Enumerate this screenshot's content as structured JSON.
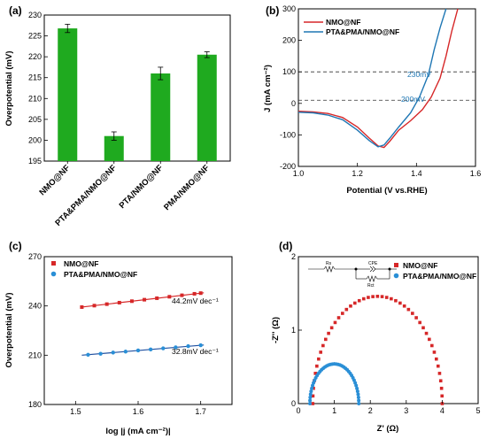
{
  "chart_data": [
    {
      "panel": "(a)",
      "type": "bar",
      "categories": [
        "NMO@NF",
        "PTA&PMA/NMO@NF",
        "PTA/NMO@NF",
        "PMA/NMO@NF"
      ],
      "values": [
        226.8,
        201.0,
        216.0,
        220.5
      ],
      "errors": [
        1.0,
        1.0,
        1.5,
        0.7
      ],
      "color": "#1faa1f",
      "ylabel": "Overpotential (mV)",
      "ylim": [
        195,
        230
      ],
      "yticks": [
        "195",
        "200",
        "205",
        "210",
        "215",
        "220",
        "225",
        "230"
      ]
    },
    {
      "panel": "(b)",
      "type": "line",
      "xlabel": "Potential (V vs.RHE)",
      "ylabel": "J (mA cm⁻²)",
      "xlim": [
        1.0,
        1.6
      ],
      "ylim": [
        -200,
        300
      ],
      "xticks": [
        "1.0",
        "1.2",
        "1.4",
        "1.6"
      ],
      "yticks": [
        "-200",
        "-100",
        "0",
        "100",
        "200",
        "300"
      ],
      "legend": "top-left",
      "series": [
        {
          "name": "NMO@NF",
          "color": "#d62728",
          "x": [
            1.0,
            1.05,
            1.1,
            1.15,
            1.2,
            1.24,
            1.27,
            1.29,
            1.31,
            1.34,
            1.38,
            1.42,
            1.45,
            1.48,
            1.5,
            1.52,
            1.54
          ],
          "y": [
            -25,
            -27,
            -32,
            -45,
            -75,
            -110,
            -135,
            -140,
            -120,
            -85,
            -55,
            -20,
            20,
            80,
            150,
            230,
            300
          ]
        },
        {
          "name": "PTA&PMA/NMO@NF",
          "color": "#1f77b4",
          "x": [
            1.0,
            1.05,
            1.1,
            1.15,
            1.2,
            1.24,
            1.27,
            1.29,
            1.31,
            1.34,
            1.38,
            1.41,
            1.44,
            1.46,
            1.48,
            1.5
          ],
          "y": [
            -28,
            -30,
            -37,
            -52,
            -85,
            -118,
            -138,
            -132,
            -110,
            -75,
            -30,
            20,
            90,
            170,
            240,
            300
          ]
        }
      ],
      "hlines": [
        100,
        10
      ],
      "annotations": [
        "230mV",
        "200mV"
      ]
    },
    {
      "panel": "(c)",
      "type": "scatter",
      "xlabel": "log |j (mA cm⁻²)|",
      "ylabel": "Overpotential (mV)",
      "xlim": [
        1.45,
        1.75
      ],
      "ylim": [
        180,
        270
      ],
      "xticks": [
        "1.5",
        "1.6",
        "1.7"
      ],
      "yticks": [
        "180",
        "210",
        "240",
        "270"
      ],
      "legend": "top-left",
      "series": [
        {
          "name": "NMO@NF",
          "color": "#d62728",
          "marker": "square",
          "x": [
            1.51,
            1.53,
            1.55,
            1.57,
            1.59,
            1.61,
            1.63,
            1.65,
            1.67,
            1.69,
            1.7
          ],
          "y": [
            239.3,
            240.2,
            241.1,
            242.0,
            242.9,
            243.8,
            244.7,
            245.6,
            246.5,
            247.4,
            247.8
          ],
          "fit": [
            [
              1.51,
              239.3
            ],
            [
              1.705,
              248.0
            ]
          ],
          "fit_color": "#d62728",
          "slope_label": "44.2mV dec⁻¹"
        },
        {
          "name": "PTA&PMA/NMO@NF",
          "color": "#2a8fd6",
          "marker": "circle",
          "x": [
            1.52,
            1.54,
            1.56,
            1.58,
            1.6,
            1.62,
            1.64,
            1.66,
            1.68,
            1.7
          ],
          "y": [
            210.3,
            210.9,
            211.6,
            212.2,
            212.9,
            213.5,
            214.2,
            214.8,
            215.5,
            216.1
          ],
          "fit": [
            [
              1.51,
              210.0
            ],
            [
              1.705,
              216.2
            ]
          ],
          "fit_color": "#1f4fa0",
          "slope_label": "32.8mV dec⁻¹"
        }
      ]
    },
    {
      "panel": "(d)",
      "type": "scatter",
      "xlabel": "Z' (Ω)",
      "ylabel": "-Z'' (Ω)",
      "xlim": [
        0,
        5
      ],
      "ylim": [
        0,
        2
      ],
      "xticks": [
        "0",
        "1",
        "2",
        "3",
        "4",
        "5"
      ],
      "yticks": [
        "0",
        "1",
        "2"
      ],
      "legend": "top-right",
      "series": [
        {
          "name": "NMO@NF",
          "color": "#d62728",
          "marker": "square",
          "arc_start": 0.4,
          "arc_end": 4.0,
          "peak": 1.46
        },
        {
          "name": "PTA&PMA/NMO@NF",
          "color": "#2a8fd6",
          "marker": "circle",
          "arc_start": 0.32,
          "arc_end": 1.68,
          "peak": 0.54
        }
      ],
      "circuit_labels": {
        "rs": "Rs",
        "cpe": "CPE",
        "rct": "Rct"
      }
    }
  ]
}
